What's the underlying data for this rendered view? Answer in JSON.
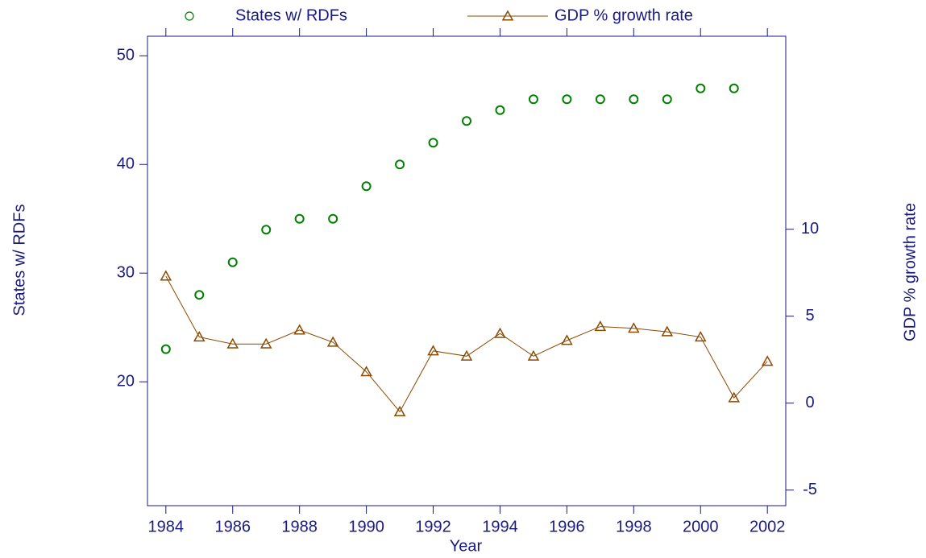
{
  "chart_data": {
    "type": "line",
    "x_label": "Year",
    "y_label": "States w/ RDFs",
    "y2_label": "GDP % growth rate",
    "x": [
      1984,
      1985,
      1986,
      1987,
      1988,
      1989,
      1990,
      1991,
      1992,
      1993,
      1994,
      1995,
      1996,
      1997,
      1998,
      1999,
      2000,
      2001,
      2002
    ],
    "xlim": [
      1983.45,
      2002.55
    ],
    "xticks": [
      1984,
      1986,
      1988,
      1990,
      1992,
      1994,
      1996,
      1998,
      2000,
      2002
    ],
    "ylim": [
      8.6,
      51.8
    ],
    "yticks": [
      20,
      30,
      40,
      50
    ],
    "y2lim": [
      -5.9,
      21.1
    ],
    "y2ticks": [
      -5,
      0,
      5,
      10
    ],
    "grid": false,
    "legend": "top",
    "series": [
      {
        "name": "States w/ RDFs",
        "type": "scatter",
        "marker": "circle",
        "color": "#008000",
        "values": [
          23,
          28,
          31,
          34,
          35,
          35,
          38,
          40,
          42,
          44,
          45,
          46,
          46,
          46,
          46,
          46,
          47,
          47,
          null
        ]
      },
      {
        "name": "GDP % growth rate",
        "type": "line",
        "marker": "triangle",
        "color": "#8b4a00",
        "axis": "y2",
        "values": [
          7.3,
          3.8,
          3.4,
          3.4,
          4.2,
          3.5,
          1.8,
          -0.5,
          3.0,
          2.7,
          4.0,
          2.7,
          3.6,
          4.4,
          4.3,
          4.1,
          3.8,
          0.3,
          2.4
        ]
      }
    ]
  }
}
